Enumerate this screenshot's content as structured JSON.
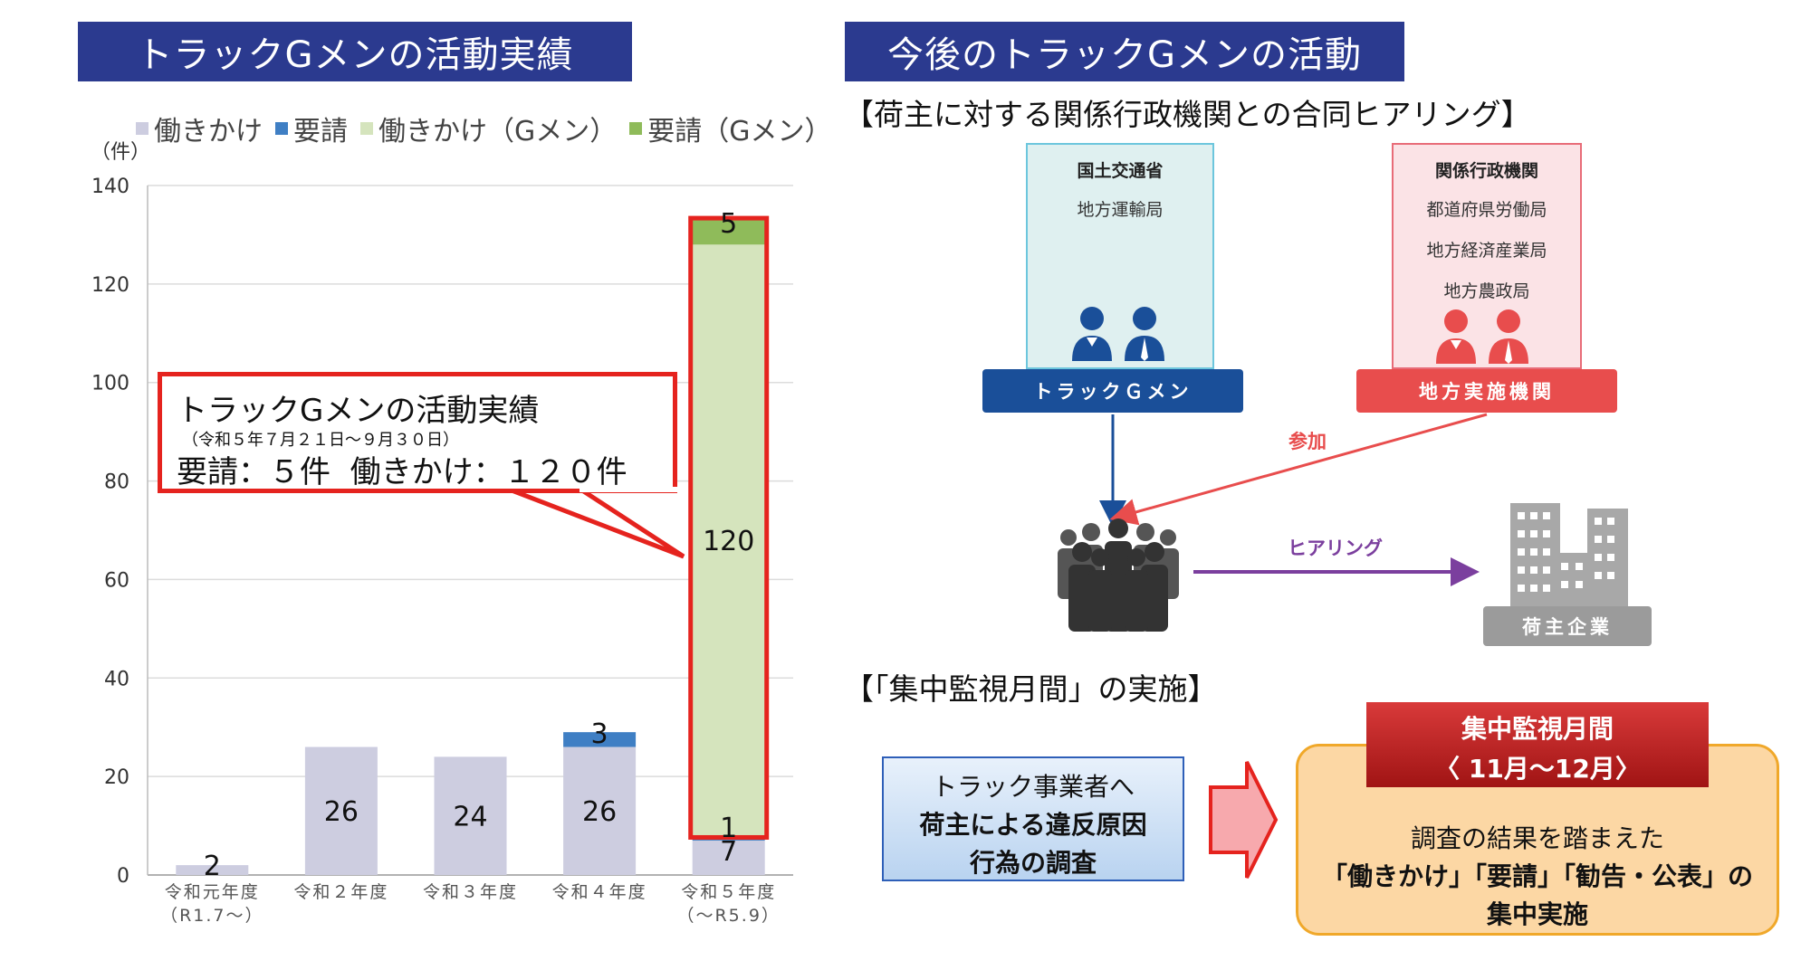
{
  "left_header": "トラックGメンの活動実績",
  "right_header": "今後のトラックGメンの活動",
  "chart_data": {
    "type": "bar",
    "stacked": true,
    "unit_label": "（件）",
    "ylim": [
      0,
      140
    ],
    "y_ticks": [
      "0",
      "20",
      "40",
      "60",
      "80",
      "100",
      "120",
      "140"
    ],
    "grid": true,
    "legend_position": "top",
    "categories": [
      "令和元年度\n（R1.7～）",
      "令和２年度",
      "令和３年度",
      "令和４年度",
      "令和５年度\n（～R5.9）"
    ],
    "series": [
      {
        "name": "働きかけ",
        "color": "#cdcde0",
        "values": [
          2,
          26,
          24,
          26,
          7
        ]
      },
      {
        "name": "要請",
        "color": "#3f7fc4",
        "values": [
          0,
          0,
          0,
          3,
          1
        ]
      },
      {
        "name": "働きかけ（Gメン）",
        "color": "#d5e4bd",
        "values": [
          0,
          0,
          0,
          0,
          120
        ]
      },
      {
        "name": "要請（Gメン）",
        "color": "#8fbb5a",
        "values": [
          0,
          0,
          0,
          0,
          5
        ]
      }
    ],
    "data_labels": [
      {
        "category": 0,
        "series": 0,
        "text": "2"
      },
      {
        "category": 1,
        "series": 0,
        "text": "26"
      },
      {
        "category": 2,
        "series": 0,
        "text": "24"
      },
      {
        "category": 3,
        "series": 0,
        "text": "26"
      },
      {
        "category": 3,
        "series": 1,
        "text": "3"
      },
      {
        "category": 4,
        "series": 0,
        "text": "7"
      },
      {
        "category": 4,
        "series": 1,
        "text": "1"
      },
      {
        "category": 4,
        "series": 2,
        "text": "120"
      },
      {
        "category": 4,
        "series": 3,
        "text": "5"
      }
    ],
    "highlight_color": "#e5231e"
  },
  "callout": {
    "title": "トラックGメンの活動実績",
    "period": "（令和５年７月２１日～９月３０日）",
    "summary": "要請：５件  働きかけ：１２０件"
  },
  "hearing": {
    "section_title": "【荷主に対する関係行政機関との合同ヒアリング】",
    "mlit": {
      "title": "国土交通省",
      "items": [
        "地方運輸局"
      ],
      "band": "トラックＧメン"
    },
    "related": {
      "title": "関係行政機関",
      "items": [
        "都道府県労働局",
        "地方経済産業局",
        "地方農政局"
      ],
      "band": "地方実施機関"
    },
    "join_label": "参加",
    "hearing_label": "ヒアリング",
    "shipper_label": "荷主企業",
    "colors": {
      "blue": "#1a4f99",
      "red": "#e84d4d",
      "purple": "#7b3f9e",
      "gray": "#8c8c8c"
    }
  },
  "monitoring": {
    "section_title": "【「集中監視月間」の実施】",
    "left_box_line1": "トラック事業者へ",
    "left_box_line2": "荷主による違反原因",
    "left_box_line3": "行為の調査",
    "month_title": "集中監視月間",
    "month_range": "〈 11月～12月〉",
    "result_line1": "調査の結果を踏まえた",
    "result_line2": "「働きかけ」「要請」「勧告・公表」の",
    "result_line3": "集中実施"
  }
}
